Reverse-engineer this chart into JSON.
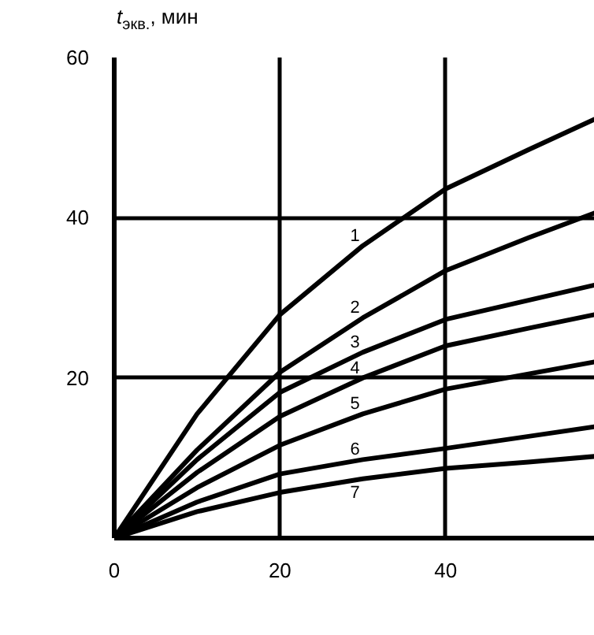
{
  "chart_data": {
    "type": "line",
    "ylabel": "t$_{экв.}$, мин",
    "x": [
      0,
      10,
      20,
      30,
      40,
      50,
      58
    ],
    "series": [
      {
        "name": "1",
        "color": "#000000",
        "values": [
          0,
          15.5,
          27.9,
          36.5,
          43.6,
          48.5,
          52.3
        ]
      },
      {
        "name": "2",
        "color": "#000000",
        "values": [
          0,
          11,
          20.7,
          27.5,
          33.4,
          37.5,
          40.6
        ]
      },
      {
        "name": "3",
        "color": "#000000",
        "values": [
          0,
          9.8,
          18.2,
          23.2,
          27.3,
          29.7,
          31.6
        ]
      },
      {
        "name": "4",
        "color": "#000000",
        "values": [
          0,
          8.2,
          15.2,
          20,
          24,
          26.2,
          27.9
        ]
      },
      {
        "name": "5",
        "color": "#000000",
        "values": [
          0,
          6.3,
          11.6,
          15.5,
          18.6,
          20.5,
          22
        ]
      },
      {
        "name": "6",
        "color": "#000000",
        "values": [
          0,
          4.5,
          8,
          9.8,
          11.2,
          12.7,
          13.9
        ]
      },
      {
        "name": "7",
        "color": "#000000",
        "values": [
          0,
          3.3,
          5.7,
          7.4,
          8.7,
          9.5,
          10.2
        ]
      }
    ],
    "xlim": [
      0,
      58
    ],
    "ylim": [
      0,
      60
    ],
    "xticks": [
      0,
      20,
      40
    ],
    "yticks": [
      {
        "value": 0,
        "label": null
      },
      20,
      40,
      60
    ],
    "grid": true,
    "marker": "none",
    "line_style": "solid"
  }
}
